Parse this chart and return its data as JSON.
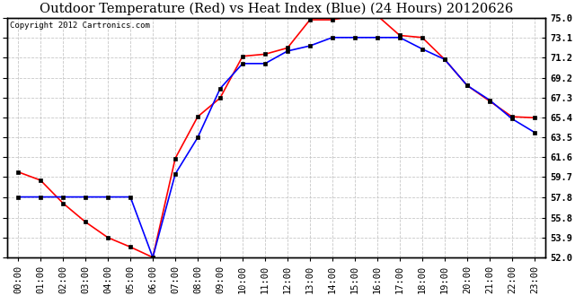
{
  "title": "Outdoor Temperature (Red) vs Heat Index (Blue) (24 Hours) 20120626",
  "copyright": "Copyright 2012 Cartronics.com",
  "x_labels": [
    "00:00",
    "01:00",
    "02:00",
    "03:00",
    "04:00",
    "05:00",
    "06:00",
    "07:00",
    "08:00",
    "09:00",
    "10:00",
    "11:00",
    "12:00",
    "13:00",
    "14:00",
    "15:00",
    "16:00",
    "17:00",
    "18:00",
    "19:00",
    "20:00",
    "21:00",
    "22:00",
    "23:00"
  ],
  "temp_red": [
    60.2,
    59.4,
    57.2,
    55.4,
    53.9,
    53.0,
    52.0,
    61.5,
    65.5,
    67.3,
    71.3,
    71.5,
    72.1,
    74.8,
    74.8,
    75.2,
    75.2,
    73.3,
    73.1,
    71.0,
    68.5,
    67.0,
    65.5,
    65.4
  ],
  "heat_blue": [
    57.8,
    57.8,
    57.8,
    57.8,
    57.8,
    57.8,
    52.0,
    60.0,
    63.5,
    68.2,
    70.6,
    70.6,
    71.8,
    72.3,
    73.1,
    73.1,
    73.1,
    73.1,
    72.0,
    71.0,
    68.5,
    67.1,
    65.3,
    64.0
  ],
  "ylim": [
    52.0,
    75.0
  ],
  "yticks": [
    52.0,
    53.9,
    55.8,
    57.8,
    59.7,
    61.6,
    63.5,
    65.4,
    67.3,
    69.2,
    71.2,
    73.1,
    75.0
  ],
  "red_color": "#ff0000",
  "blue_color": "#0000ff",
  "bg_color": "#ffffff",
  "grid_color": "#c8c8c8",
  "title_fontsize": 10.5,
  "copyright_fontsize": 6.5,
  "axis_fontsize": 7.5
}
